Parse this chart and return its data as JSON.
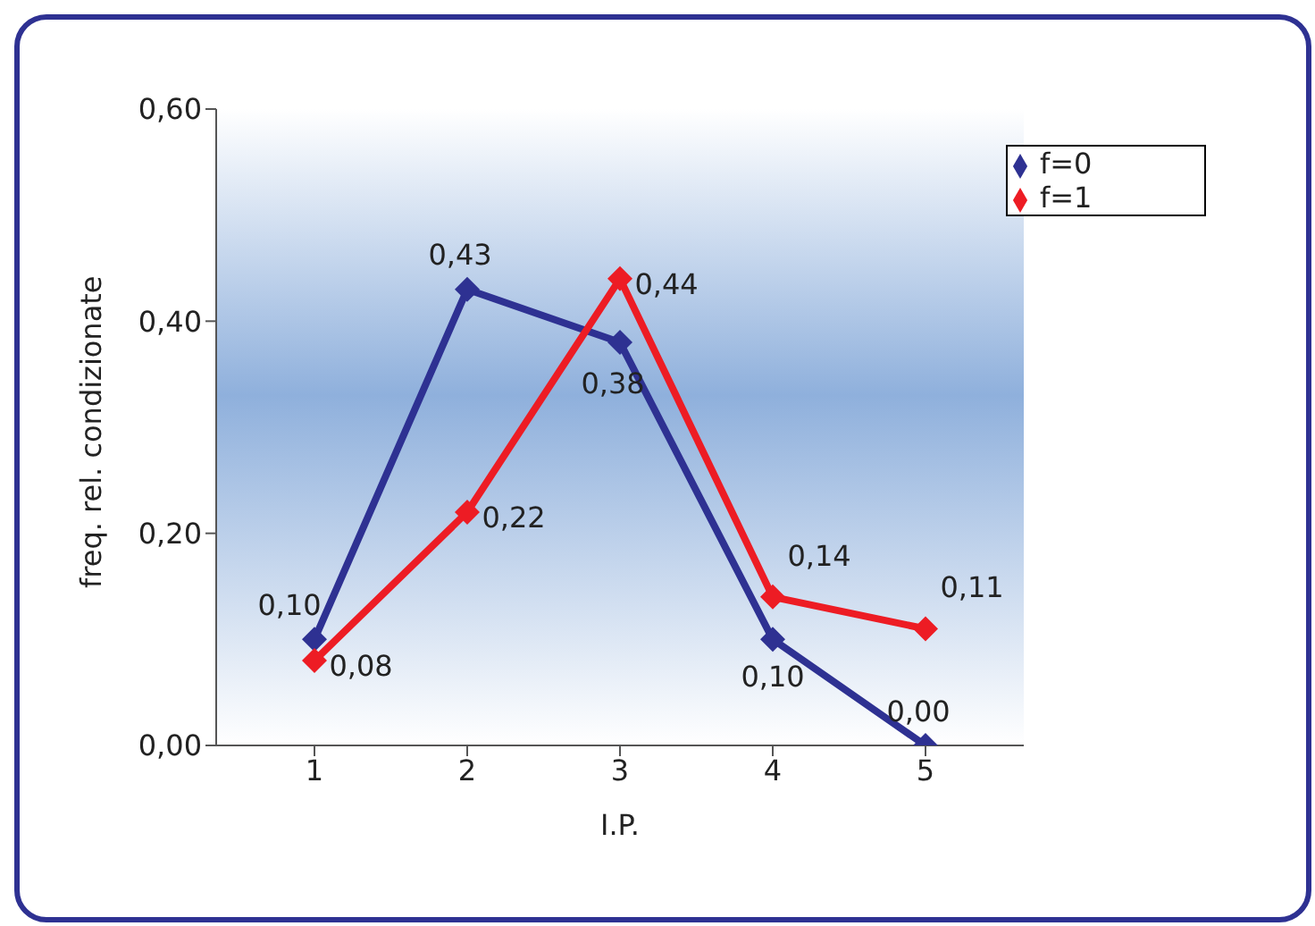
{
  "chart_data": {
    "type": "line",
    "xlabel": "I.P.",
    "ylabel": "freq. rel. condizionate",
    "categories": [
      "1",
      "2",
      "3",
      "4",
      "5"
    ],
    "series": [
      {
        "name": "f=0",
        "color": "#2e3192",
        "values": [
          0.1,
          0.43,
          0.38,
          0.1,
          0.0
        ],
        "value_labels": [
          "0,10",
          "0,43",
          "0,38",
          "0,10",
          "0,00"
        ]
      },
      {
        "name": "f=1",
        "color": "#ed1c24",
        "values": [
          0.08,
          0.22,
          0.44,
          0.14,
          0.11
        ],
        "value_labels": [
          "0,08",
          "0,22",
          "0,44",
          "0,14",
          "0,11"
        ]
      }
    ],
    "ylim": [
      0,
      0.6
    ],
    "yticks": [
      {
        "value": 0,
        "label": "0,00"
      },
      {
        "value": 0.2,
        "label": "0,20"
      },
      {
        "value": 0.4,
        "label": "0,40"
      },
      {
        "value": 0.6,
        "label": "0,60"
      }
    ],
    "grid": false,
    "legend": "top right",
    "marker": "diamond",
    "line_style": "solid"
  }
}
